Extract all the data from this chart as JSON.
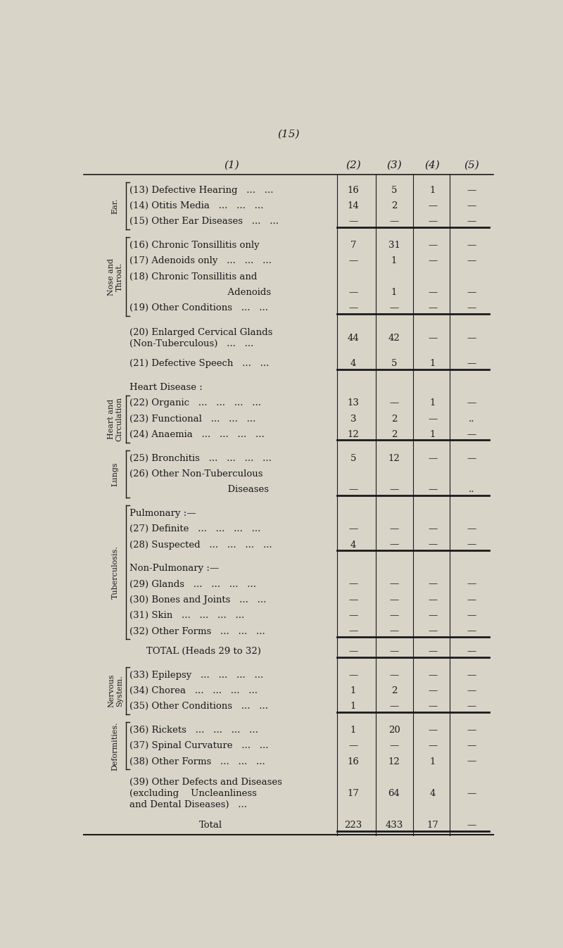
{
  "page_number": "(15)",
  "bg_color": "#d8d4c8",
  "text_color": "#1a1a1a",
  "col_headers": [
    "(1)",
    "(2)",
    "(3)",
    "(4)",
    "(5)"
  ],
  "bracket_groups": [
    {
      "rows": [
        0,
        1,
        2
      ],
      "label": "Ear."
    },
    {
      "rows": [
        3,
        4,
        5,
        6,
        7
      ],
      "label": "Nose and\nThroat."
    },
    {
      "rows": [
        11,
        12,
        13
      ],
      "label": "Heart and\nCirculation"
    },
    {
      "rows": [
        14,
        15,
        16
      ],
      "label": "Lungs"
    },
    {
      "rows": [
        17,
        18,
        19,
        20,
        21,
        22,
        23,
        24
      ],
      "label": "Tuberculosis."
    },
    {
      "rows": [
        26,
        27,
        28
      ],
      "label": "Nervous\nSystem."
    },
    {
      "rows": [
        29,
        30,
        31
      ],
      "label": "Deformities."
    }
  ],
  "rows": [
    {
      "num": "13",
      "desc": "Defective Hearing   ...   ...",
      "c2": "16",
      "c3": "5",
      "c4": "1",
      "c5": "—",
      "indent": 1,
      "bold_line_after": false,
      "extra_space_after": false
    },
    {
      "num": "14",
      "desc": "Otitis Media   ...   ...   ...",
      "c2": "14",
      "c3": "2",
      "c4": "—",
      "c5": "—",
      "indent": 1,
      "bold_line_after": false,
      "extra_space_after": false
    },
    {
      "num": "15",
      "desc": "Other Ear Diseases   ...   ...",
      "c2": "—",
      "c3": "—",
      "c4": "—",
      "c5": "—",
      "indent": 1,
      "bold_line_after": true,
      "extra_space_after": true
    },
    {
      "num": "16",
      "desc": "Chronic Tonsillitis only",
      "c2": "7",
      "c3": "31",
      "c4": "—",
      "c5": "—",
      "indent": 1,
      "bold_line_after": false,
      "extra_space_after": false
    },
    {
      "num": "17",
      "desc": "Adenoids only   ...   ...   ...",
      "c2": "—",
      "c3": "1",
      "c4": "—",
      "c5": "—",
      "indent": 1,
      "bold_line_after": false,
      "extra_space_after": false
    },
    {
      "num": "18",
      "desc": "Chronic Tonsillitis and",
      "c2": "",
      "c3": "",
      "c4": "",
      "c5": "",
      "indent": 1,
      "bold_line_after": false,
      "extra_space_after": false
    },
    {
      "num": "",
      "desc": "                              Adenoids",
      "c2": "—",
      "c3": "1",
      "c4": "—",
      "c5": "—",
      "indent": 0,
      "bold_line_after": false,
      "extra_space_after": false
    },
    {
      "num": "19",
      "desc": "Other Conditions   ...   ...",
      "c2": "—",
      "c3": "—",
      "c4": "—",
      "c5": "—",
      "indent": 1,
      "bold_line_after": true,
      "extra_space_after": true
    },
    {
      "num": "20",
      "desc": "Enlarged Cervical Glands\n(Non-Tuberculous)   ...   ...",
      "c2": "44",
      "c3": "42",
      "c4": "—",
      "c5": "—",
      "indent": 1,
      "bold_line_after": false,
      "extra_space_after": true
    },
    {
      "num": "21",
      "desc": "Defective Speech   ...   ...",
      "c2": "4",
      "c3": "5",
      "c4": "1",
      "c5": "—",
      "indent": 1,
      "bold_line_after": true,
      "extra_space_after": true
    },
    {
      "num": "",
      "desc": "Heart Disease :",
      "c2": "",
      "c3": "",
      "c4": "",
      "c5": "",
      "indent": 1,
      "bold_line_after": false,
      "extra_space_after": false
    },
    {
      "num": "22",
      "desc": "Organic   ...   ...   ...   ...",
      "c2": "13",
      "c3": "—",
      "c4": "1",
      "c5": "—",
      "indent": 1,
      "bold_line_after": false,
      "extra_space_after": false
    },
    {
      "num": "23",
      "desc": "Functional   ...   ...   ...",
      "c2": "3",
      "c3": "2",
      "c4": "—",
      "c5": "..",
      "indent": 1,
      "bold_line_after": false,
      "extra_space_after": false
    },
    {
      "num": "24",
      "desc": "Anaemia   ...   ...   ...   ...",
      "c2": "12",
      "c3": "2",
      "c4": "1",
      "c5": "—",
      "indent": 1,
      "bold_line_after": true,
      "extra_space_after": true
    },
    {
      "num": "25",
      "desc": "Bronchitis   ...   ...   ...   ...",
      "c2": "5",
      "c3": "12",
      "c4": "—",
      "c5": "—",
      "indent": 1,
      "bold_line_after": false,
      "extra_space_after": false
    },
    {
      "num": "26",
      "desc": "Other Non-Tuberculous",
      "c2": "",
      "c3": "",
      "c4": "",
      "c5": "",
      "indent": 1,
      "bold_line_after": false,
      "extra_space_after": false
    },
    {
      "num": "",
      "desc": "                              Diseases",
      "c2": "—",
      "c3": "—",
      "c4": "—",
      "c5": "..",
      "indent": 0,
      "bold_line_after": true,
      "extra_space_after": true
    },
    {
      "num": "",
      "desc": "Pulmonary :—",
      "c2": "",
      "c3": "",
      "c4": "",
      "c5": "",
      "indent": 1,
      "bold_line_after": false,
      "extra_space_after": false
    },
    {
      "num": "27",
      "desc": "Definite   ...   ...   ...   ...",
      "c2": "—",
      "c3": "—",
      "c4": "—",
      "c5": "—",
      "indent": 1,
      "bold_line_after": false,
      "extra_space_after": false
    },
    {
      "num": "28",
      "desc": "Suspected   ...   ...   ...   ...",
      "c2": "4",
      "c3": "—",
      "c4": "—",
      "c5": "—",
      "indent": 1,
      "bold_line_after": true,
      "extra_space_after": true
    },
    {
      "num": "",
      "desc": "Non-Pulmonary :—",
      "c2": "",
      "c3": "",
      "c4": "",
      "c5": "",
      "indent": 1,
      "bold_line_after": false,
      "extra_space_after": false
    },
    {
      "num": "29",
      "desc": "Glands   ...   ...   ...   ...",
      "c2": "—",
      "c3": "—",
      "c4": "—",
      "c5": "—",
      "indent": 1,
      "bold_line_after": false,
      "extra_space_after": false
    },
    {
      "num": "30",
      "desc": "Bones and Joints   ...   ...",
      "c2": "—",
      "c3": "—",
      "c4": "—",
      "c5": "—",
      "indent": 1,
      "bold_line_after": false,
      "extra_space_after": false
    },
    {
      "num": "31",
      "desc": "Skin   ...   ...   ...   ...",
      "c2": "—",
      "c3": "—",
      "c4": "—",
      "c5": "—",
      "indent": 1,
      "bold_line_after": false,
      "extra_space_after": false
    },
    {
      "num": "32",
      "desc": "Other Forms   ...   ...   ...",
      "c2": "—",
      "c3": "—",
      "c4": "—",
      "c5": "—",
      "indent": 1,
      "bold_line_after": true,
      "extra_space_after": false
    },
    {
      "num": "",
      "desc": "TOTAL (Heads 29 to 32)",
      "c2": "—",
      "c3": "—",
      "c4": "—",
      "c5": "—",
      "indent": 2,
      "bold_line_after": true,
      "extra_space_after": true
    },
    {
      "num": "33",
      "desc": "Epilepsy   ...   ...   ...   ...",
      "c2": "—",
      "c3": "—",
      "c4": "—",
      "c5": "—",
      "indent": 1,
      "bold_line_after": false,
      "extra_space_after": false
    },
    {
      "num": "34",
      "desc": "Chorea   ...   ...   ...   ...",
      "c2": "1",
      "c3": "2",
      "c4": "—",
      "c5": "—",
      "indent": 1,
      "bold_line_after": false,
      "extra_space_after": false
    },
    {
      "num": "35",
      "desc": "Other Conditions   ...   ...",
      "c2": "1",
      "c3": "—",
      "c4": "—",
      "c5": "—",
      "indent": 1,
      "bold_line_after": true,
      "extra_space_after": true
    },
    {
      "num": "36",
      "desc": "Rickets   ...   ...   ...   ...",
      "c2": "1",
      "c3": "20",
      "c4": "—",
      "c5": "—",
      "indent": 1,
      "bold_line_after": false,
      "extra_space_after": false
    },
    {
      "num": "37",
      "desc": "Spinal Curvature   ...   ...",
      "c2": "—",
      "c3": "—",
      "c4": "—",
      "c5": "—",
      "indent": 1,
      "bold_line_after": false,
      "extra_space_after": false
    },
    {
      "num": "38",
      "desc": "Other Forms   ...   ...   ...",
      "c2": "16",
      "c3": "12",
      "c4": "1",
      "c5": "—",
      "indent": 1,
      "bold_line_after": false,
      "extra_space_after": true
    },
    {
      "num": "39",
      "desc": "Other Defects and Diseases\n(excluding    Uncleanliness\nand Dental Diseases)   ...",
      "c2": "17",
      "c3": "64",
      "c4": "4",
      "c5": "—",
      "indent": 1,
      "bold_line_after": false,
      "extra_space_after": true
    },
    {
      "num": "",
      "desc": "Total",
      "c2": "223",
      "c3": "433",
      "c4": "17",
      "c5": "—",
      "indent": 3,
      "bold_line_after": true,
      "extra_space_after": false
    }
  ]
}
